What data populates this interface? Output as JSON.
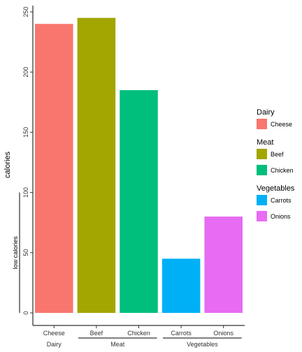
{
  "chart_data": {
    "type": "bar",
    "categories": [
      "Cheese",
      "Beef",
      "Chicken",
      "Carrots",
      "Onions"
    ],
    "values": [
      240,
      245,
      185,
      45,
      80
    ],
    "groups": [
      {
        "name": "Dairy",
        "categories": [
          "Cheese"
        ]
      },
      {
        "name": "Meat",
        "categories": [
          "Beef",
          "Chicken"
        ]
      },
      {
        "name": "Vegetables",
        "categories": [
          "Carrots",
          "Onions"
        ]
      }
    ],
    "colors": {
      "Cheese": "#F8766D",
      "Beef": "#A3A500",
      "Chicken": "#00BF7D",
      "Carrots": "#00B0F6",
      "Onions": "#E76BF3"
    },
    "ylabel": "calories",
    "xlabel": "",
    "ylim": [
      0,
      250
    ],
    "yticks": [
      0,
      50,
      100,
      150,
      200,
      250
    ],
    "annotation": {
      "label": "low calories",
      "range": [
        0,
        100
      ]
    },
    "grid": false,
    "legend": {
      "placement": "right",
      "sections": [
        {
          "title": "Dairy",
          "items": [
            "Cheese"
          ]
        },
        {
          "title": "Meat",
          "items": [
            "Beef",
            "Chicken"
          ]
        },
        {
          "title": "Vegetables",
          "items": [
            "Carrots",
            "Onions"
          ]
        }
      ]
    }
  }
}
